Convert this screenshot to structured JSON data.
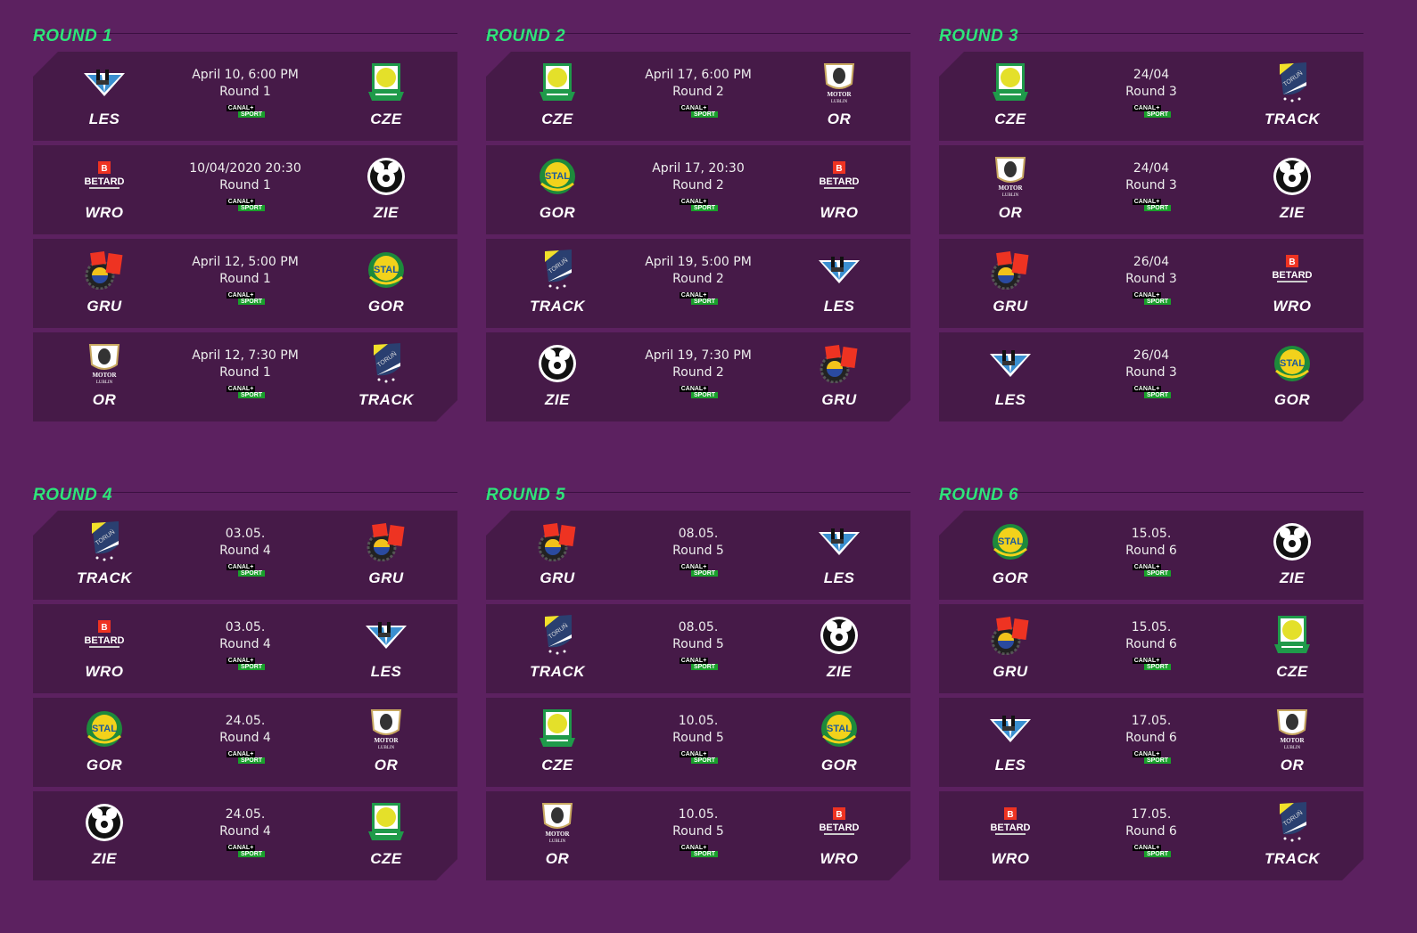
{
  "broadcaster": {
    "line1": "CANAL+",
    "line2": "SPORT"
  },
  "colors": {
    "background": "#5c2160",
    "card": "#461a48",
    "heading": "#2ee57a"
  },
  "rounds": [
    {
      "title": "ROUND 1",
      "matches": [
        {
          "home": "LES",
          "away": "CZE",
          "date": "April 10, 6:00 PM",
          "round": "Round 1"
        },
        {
          "home": "WRO",
          "away": "ZIE",
          "date": "10/04/2020 20:30",
          "round": "Round 1"
        },
        {
          "home": "GRU",
          "away": "GOR",
          "date": "April 12, 5:00 PM",
          "round": "Round 1"
        },
        {
          "home": "OR",
          "away": "TRACK",
          "date": "April 12, 7:30 PM",
          "round": "Round 1"
        }
      ]
    },
    {
      "title": "ROUND 2",
      "matches": [
        {
          "home": "CZE",
          "away": "OR",
          "date": "April 17, 6:00 PM",
          "round": "Round 2"
        },
        {
          "home": "GOR",
          "away": "WRO",
          "date": "April 17, 20:30",
          "round": "Round 2"
        },
        {
          "home": "TRACK",
          "away": "LES",
          "date": "April 19, 5:00 PM",
          "round": "Round 2"
        },
        {
          "home": "ZIE",
          "away": "GRU",
          "date": "April 19, 7:30 PM",
          "round": "Round 2"
        }
      ]
    },
    {
      "title": "ROUND 3",
      "matches": [
        {
          "home": "CZE",
          "away": "TRACK",
          "date": "24/04",
          "round": "Round 3"
        },
        {
          "home": "OR",
          "away": "ZIE",
          "date": "24/04",
          "round": "Round 3"
        },
        {
          "home": "GRU",
          "away": "WRO",
          "date": "26/04",
          "round": "Round 3"
        },
        {
          "home": "LES",
          "away": "GOR",
          "date": "26/04",
          "round": "Round 3"
        }
      ]
    },
    {
      "title": "ROUND 4",
      "matches": [
        {
          "home": "TRACK",
          "away": "GRU",
          "date": "03.05.",
          "round": "Round 4"
        },
        {
          "home": "WRO",
          "away": "LES",
          "date": "03.05.",
          "round": "Round 4"
        },
        {
          "home": "GOR",
          "away": "OR",
          "date": "24.05.",
          "round": "Round 4"
        },
        {
          "home": "ZIE",
          "away": "CZE",
          "date": "24.05.",
          "round": "Round 4"
        }
      ]
    },
    {
      "title": "ROUND 5",
      "matches": [
        {
          "home": "GRU",
          "away": "LES",
          "date": "08.05.",
          "round": "Round 5"
        },
        {
          "home": "TRACK",
          "away": "ZIE",
          "date": "08.05.",
          "round": "Round 5"
        },
        {
          "home": "CZE",
          "away": "GOR",
          "date": "10.05.",
          "round": "Round 5"
        },
        {
          "home": "OR",
          "away": "WRO",
          "date": "10.05.",
          "round": "Round 5"
        }
      ]
    },
    {
      "title": "ROUND 6",
      "matches": [
        {
          "home": "GOR",
          "away": "ZIE",
          "date": "15.05.",
          "round": "Round 6"
        },
        {
          "home": "GRU",
          "away": "CZE",
          "date": "15.05.",
          "round": "Round 6"
        },
        {
          "home": "LES",
          "away": "OR",
          "date": "17.05.",
          "round": "Round 6"
        },
        {
          "home": "WRO",
          "away": "TRACK",
          "date": "17.05.",
          "round": "Round 6"
        }
      ]
    }
  ]
}
